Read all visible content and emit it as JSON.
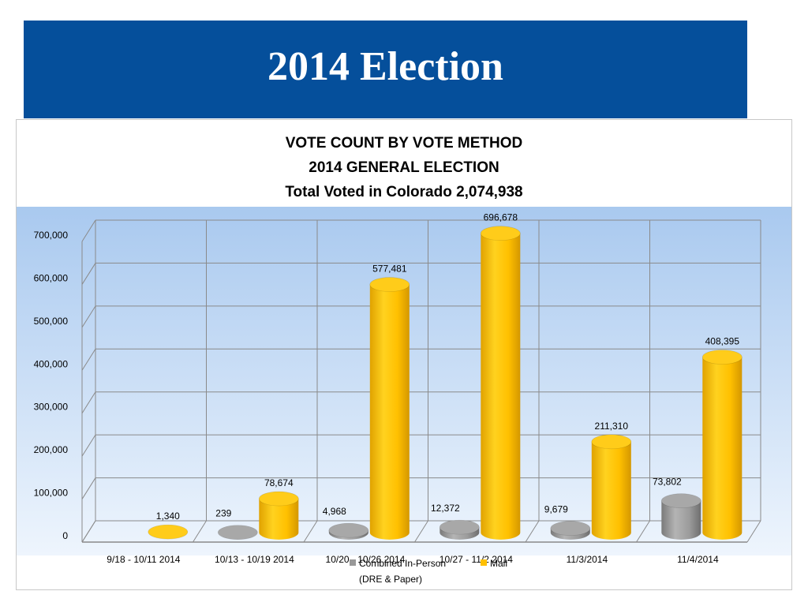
{
  "slide": {
    "title": "2014 Election"
  },
  "chart_data": {
    "type": "bar",
    "title_lines": [
      "VOTE COUNT BY VOTE METHOD",
      "2014 GENERAL ELECTION",
      "Total Voted in Colorado 2,074,938"
    ],
    "categories": [
      "9/18 - 10/11 2014",
      "10/13 - 10/19 2014",
      "10/20 - 10/26 2014",
      "10/27 - 11/2 2014",
      "11/3/2014",
      "11/4/2014"
    ],
    "series": [
      {
        "name": "Combined In-Person (DRE & Paper)",
        "legend_lines": [
          "Combined In-Person",
          "(DRE & Paper)"
        ],
        "color": "#999999",
        "values": [
          null,
          239,
          4968,
          12372,
          9679,
          73802
        ],
        "labels": [
          "",
          "239",
          "4,968",
          "12,372",
          "9,679",
          "73,802"
        ]
      },
      {
        "name": "Mail",
        "legend_lines": [
          "Mail"
        ],
        "color": "#ffc000",
        "values": [
          1340,
          78674,
          577481,
          696678,
          211310,
          408395
        ],
        "labels": [
          "1,340",
          "78,674",
          "577,481",
          "696,678",
          "211,310",
          "408,395"
        ]
      }
    ],
    "yticks": [
      "0",
      "100,000",
      "200,000",
      "300,000",
      "400,000",
      "500,000",
      "600,000",
      "700,000"
    ],
    "ylim": [
      0,
      700000
    ],
    "grid": true,
    "legend_position": "bottom"
  }
}
